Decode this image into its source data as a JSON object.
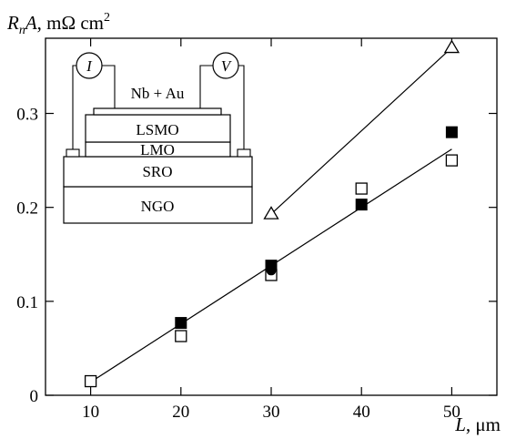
{
  "chart_data": {
    "type": "scatter",
    "x_axis": {
      "label_var": "L",
      "label_unit": ", μm",
      "range": [
        5,
        55
      ],
      "ticks": [
        10,
        20,
        30,
        40,
        50
      ],
      "tick_labels": [
        "10",
        "20",
        "30",
        "40",
        "50"
      ]
    },
    "y_axis": {
      "label_var_main": "R",
      "label_var_sub": "n",
      "label_var_tail": "A",
      "label_unit": ", mΩ cm",
      "label_unit_sup": "2",
      "range": [
        0,
        0.38
      ],
      "ticks": [
        0,
        0.1,
        0.2,
        0.3
      ],
      "tick_labels": [
        "0",
        "0.1",
        "0.2",
        "0.3"
      ]
    },
    "grid": false,
    "series": [
      {
        "marker": "square-open",
        "x": [
          10,
          20,
          30,
          40,
          50
        ],
        "y": [
          0.015,
          0.063,
          0.128,
          0.22,
          0.25
        ]
      },
      {
        "marker": "square-filled",
        "x": [
          20,
          30,
          40,
          50
        ],
        "y": [
          0.077,
          0.138,
          0.203,
          0.28
        ]
      },
      {
        "marker": "circle-filled",
        "x": [
          30
        ],
        "y": [
          0.133
        ]
      },
      {
        "marker": "triangle-open",
        "x": [
          30,
          50
        ],
        "y": [
          0.193,
          0.37
        ]
      }
    ],
    "fit_lines": [
      {
        "x": [
          10,
          50
        ],
        "y": [
          0.014,
          0.262
        ]
      },
      {
        "x": [
          30,
          50
        ],
        "y": [
          0.193,
          0.37
        ]
      }
    ],
    "inset": {
      "layers": [
        "Nb + Au",
        "LSMO",
        "LMO",
        "SRO",
        "NGO"
      ],
      "meters": [
        "I",
        "V"
      ]
    }
  }
}
